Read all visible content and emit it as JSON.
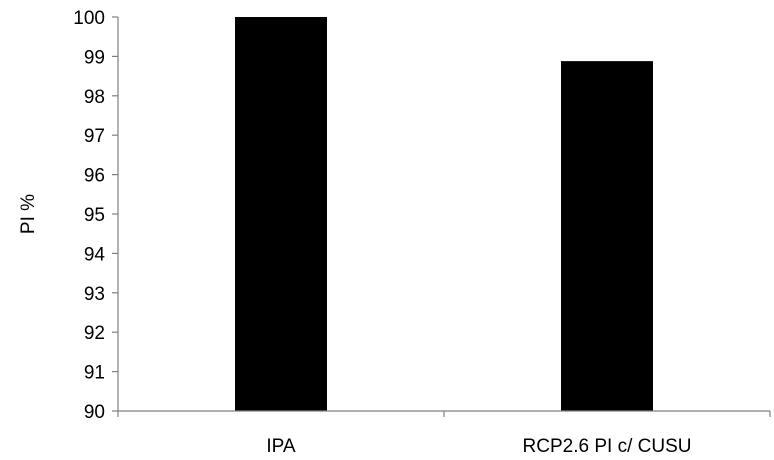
{
  "chart_data": {
    "type": "bar",
    "title": "",
    "xlabel": "",
    "ylabel": "PI %",
    "categories": [
      "IPA",
      "RCP2.6 PI c/ CUSU"
    ],
    "values": [
      100,
      98.88
    ],
    "ylim": [
      90,
      100
    ],
    "yticks": [
      90,
      91,
      92,
      93,
      94,
      95,
      96,
      97,
      98,
      99,
      100
    ],
    "grid": false,
    "legend": "none",
    "colors": {
      "bar": "#000000",
      "axis": "#808080",
      "text": "#000000"
    }
  }
}
